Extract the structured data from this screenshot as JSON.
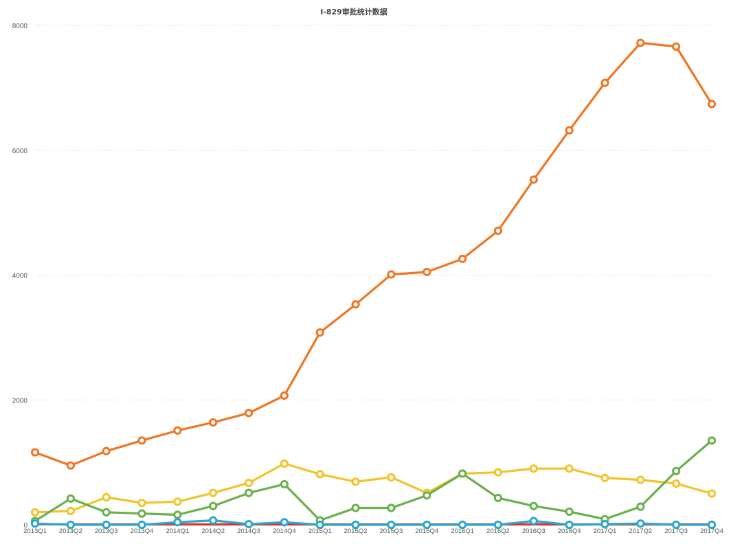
{
  "chart_data": {
    "type": "line",
    "title": "I-829审批统计数据",
    "xlabel": "",
    "ylabel": "",
    "ylim": [
      0,
      8000
    ],
    "yticks": [
      0,
      2000,
      4000,
      6000,
      8000
    ],
    "grid": true,
    "legend": "none",
    "categories": [
      "2013Q1",
      "2013Q2",
      "2013Q3",
      "2013Q4",
      "2014Q1",
      "2014Q2",
      "2014Q3",
      "2014Q4",
      "2015Q1",
      "2015Q2",
      "2015Q3",
      "2015Q4",
      "2016Q1",
      "2016Q2",
      "2016Q3",
      "2016Q4",
      "2017Q1",
      "2017Q2",
      "2017Q3",
      "2017Q4"
    ],
    "series": [
      {
        "name": "red",
        "color": "#d9332c",
        "markers": false,
        "values": [
          10,
          5,
          5,
          5,
          5,
          5,
          5,
          5,
          5,
          5,
          5,
          5,
          5,
          5,
          5,
          5,
          5,
          5,
          5,
          5
        ]
      },
      {
        "name": "yellow",
        "color": "#f2c42a",
        "markers": true,
        "values": [
          200,
          220,
          440,
          350,
          370,
          510,
          670,
          980,
          810,
          690,
          760,
          510,
          820,
          840,
          900,
          900,
          750,
          720,
          660,
          500
        ]
      },
      {
        "name": "green",
        "color": "#6ab04c",
        "markers": true,
        "values": [
          60,
          420,
          200,
          180,
          160,
          300,
          510,
          650,
          70,
          270,
          270,
          470,
          820,
          430,
          300,
          210,
          90,
          290,
          860,
          1350
        ]
      },
      {
        "name": "orange",
        "color": "#ef7622",
        "markers": true,
        "values": [
          1160,
          950,
          1180,
          1350,
          1510,
          1640,
          1790,
          2070,
          3080,
          3530,
          4010,
          4050,
          4260,
          4710,
          5530,
          6320,
          7080,
          7720,
          7660,
          6740
        ]
      },
      {
        "name": "blue",
        "color": "#2aa6cf",
        "markers": true,
        "values": [
          20,
          0,
          0,
          0,
          40,
          70,
          10,
          40,
          0,
          0,
          0,
          0,
          0,
          0,
          60,
          0,
          10,
          20,
          0,
          0
        ]
      }
    ]
  }
}
